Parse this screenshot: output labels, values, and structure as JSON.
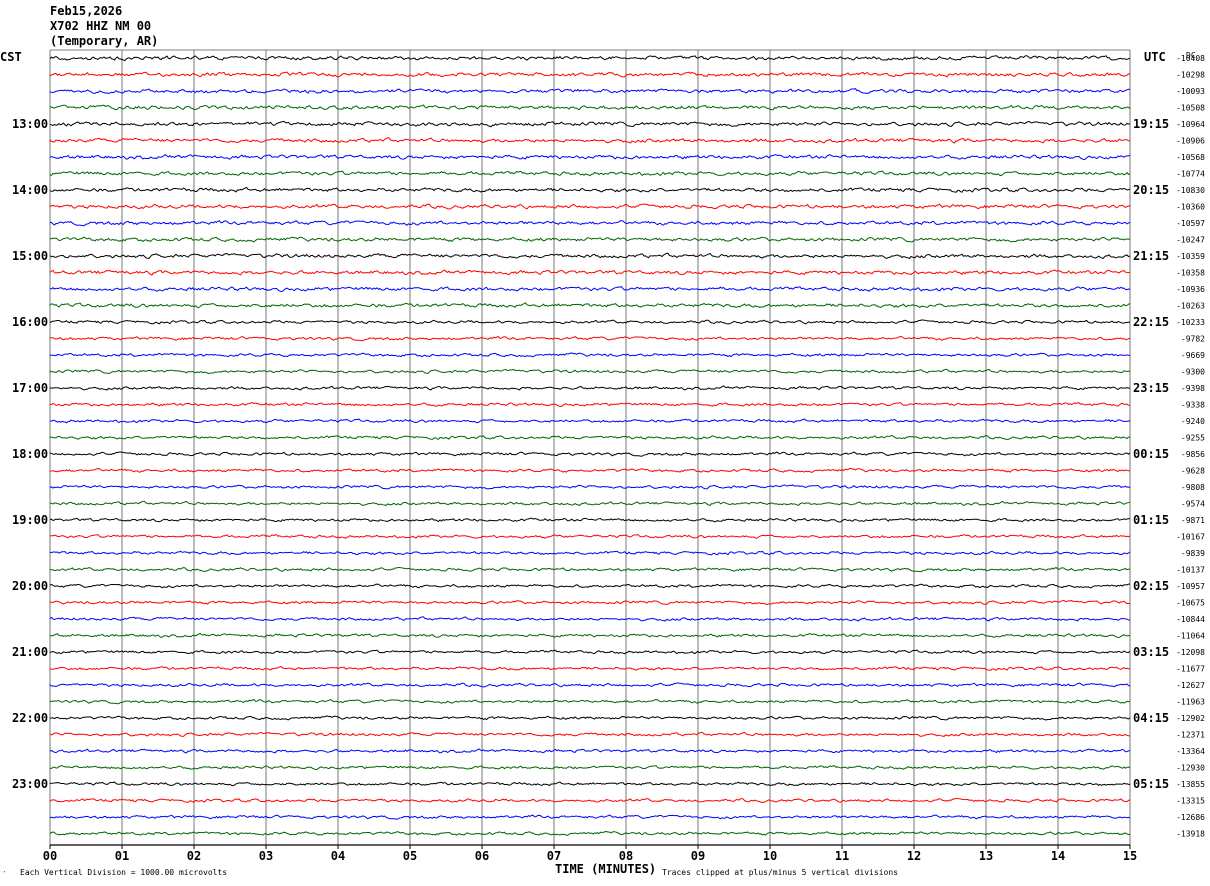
{
  "header": {
    "date": "Feb15,2026",
    "station": "X702 HHZ NM 00",
    "network": "(Temporary, AR)"
  },
  "axis": {
    "left_zone": "CST",
    "right_zone": "UTC",
    "dc_label": "DC",
    "xlabel": "TIME (MINUTES)",
    "footer_left": "Each Vertical Division = 1000.00 microvolts",
    "footer_right": "Traces clipped at plus/minus 5 vertical divisions",
    "corner_mark": "‵"
  },
  "chart_data": {
    "type": "line",
    "title": "",
    "xlabel": "TIME (MINUTES)",
    "ylabel": "",
    "x_ticks": [
      "00",
      "01",
      "02",
      "03",
      "04",
      "05",
      "06",
      "07",
      "08",
      "09",
      "10",
      "11",
      "12",
      "13",
      "14",
      "15"
    ],
    "xlim": [
      0,
      15
    ],
    "rows_per_hour": 4,
    "left_hour_labels": [
      "13:00",
      "14:00",
      "15:00",
      "16:00",
      "17:00",
      "18:00",
      "19:00",
      "20:00",
      "21:00",
      "22:00",
      "23:00"
    ],
    "right_hour_labels": [
      "19:15",
      "20:15",
      "21:15",
      "22:15",
      "23:15",
      "00:15",
      "01:15",
      "02:15",
      "03:15",
      "04:15",
      "05:15"
    ],
    "first_labeled_row": 4,
    "trace_colors": [
      "#000000",
      "#ff0000",
      "#0000ff",
      "#006600"
    ],
    "dc_offsets": [
      "-10408",
      "-10298",
      "-10093",
      "-10508",
      "-10964",
      "-10906",
      "-10568",
      "-10774",
      "-10830",
      "-10360",
      "-10597",
      "-10247",
      "-10359",
      "-10358",
      "-10936",
      "-10263",
      "-10233",
      "-9782",
      "-9669",
      "-9300",
      "-9398",
      "-9338",
      "-9240",
      "-9255",
      "-9856",
      "-9628",
      "-9808",
      "-9574",
      "-9871",
      "-10167",
      "-9839",
      "-10137",
      "-10957",
      "-10675",
      "-10844",
      "-11064",
      "-12098",
      "-11677",
      "-12627",
      "-11963",
      "-12902",
      "-12371",
      "-13364",
      "-12930",
      "-13855",
      "-13315",
      "-12686",
      "-13918"
    ],
    "grid": true,
    "vertical_division_microvolts": 1000.0,
    "clip_divisions": 5
  }
}
